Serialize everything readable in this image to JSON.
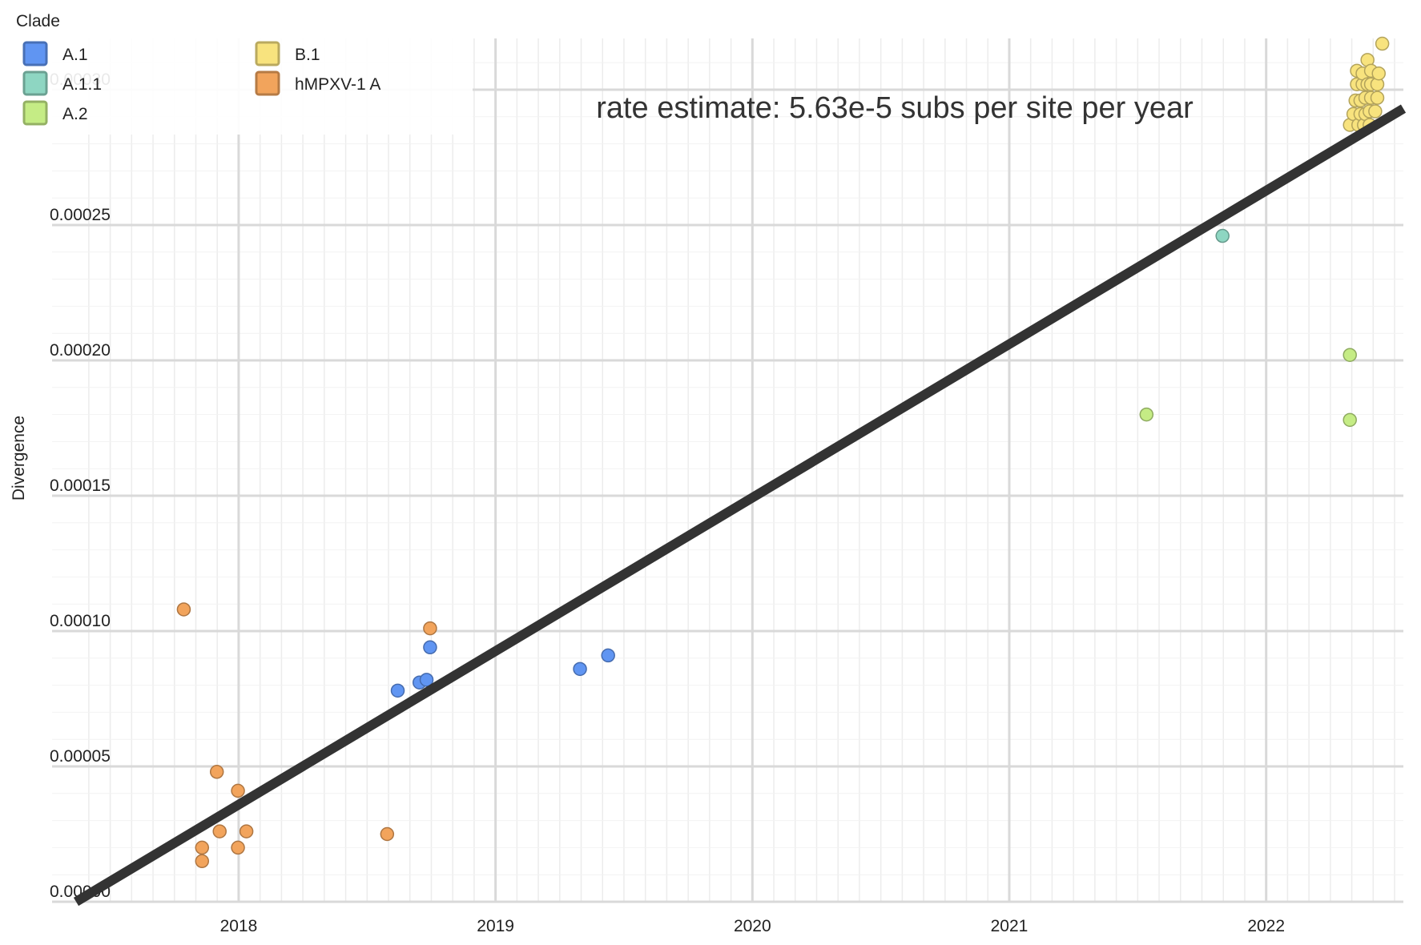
{
  "chart_data": {
    "type": "scatter",
    "title": "",
    "annotation": "rate estimate: 5.63e-5 subs per site per year",
    "xlabel": "",
    "ylabel": "Divergence",
    "xlim": [
      "2017-05-15",
      "2022-07-15"
    ],
    "ylim": [
      0,
      0.00032
    ],
    "x_ticks": [
      "2018",
      "2019",
      "2020",
      "2021",
      "2022"
    ],
    "y_ticks": [
      "0.00000",
      "0.00005",
      "0.00010",
      "0.00015",
      "0.00020",
      "0.00025",
      "0.00030"
    ],
    "grid": true,
    "legend": {
      "title": "Clade",
      "position": "top-left",
      "entries": [
        {
          "name": "A.1",
          "color": "#6095f2"
        },
        {
          "name": "A.1.1",
          "color": "#8ed6c2"
        },
        {
          "name": "A.2",
          "color": "#c5ec85"
        },
        {
          "name": "B.1",
          "color": "#f8e37e"
        },
        {
          "name": "hMPXV-1 A",
          "color": "#f2a45c"
        }
      ]
    },
    "regression_line": {
      "color": "#333333",
      "points": [
        {
          "x": "2017-05-15",
          "y": 0.0
        },
        {
          "x": "2022-07-15",
          "y": 0.000293
        }
      ]
    },
    "series": [
      {
        "name": "hMPXV-1 A",
        "color": "#f2a45c",
        "points": [
          {
            "x": "2017-10-15",
            "y": 0.000108
          },
          {
            "x": "2017-11-10",
            "y": 2e-05
          },
          {
            "x": "2017-11-10",
            "y": 1.5e-05
          },
          {
            "x": "2017-12-01",
            "y": 4.8e-05
          },
          {
            "x": "2017-12-05",
            "y": 2.6e-05
          },
          {
            "x": "2017-12-31",
            "y": 4.1e-05
          },
          {
            "x": "2017-12-31",
            "y": 2e-05
          },
          {
            "x": "2018-01-12",
            "y": 2.6e-05
          },
          {
            "x": "2018-07-31",
            "y": 2.5e-05
          },
          {
            "x": "2018-09-30",
            "y": 0.000101
          }
        ]
      },
      {
        "name": "A.1",
        "color": "#6095f2",
        "points": [
          {
            "x": "2018-08-15",
            "y": 7.8e-05
          },
          {
            "x": "2018-09-15",
            "y": 8.1e-05
          },
          {
            "x": "2018-09-25",
            "y": 8.2e-05
          },
          {
            "x": "2018-09-30",
            "y": 9.4e-05
          },
          {
            "x": "2019-05-01",
            "y": 8.6e-05
          },
          {
            "x": "2019-06-10",
            "y": 9.1e-05
          }
        ]
      },
      {
        "name": "A.1.1",
        "color": "#8ed6c2",
        "points": [
          {
            "x": "2021-10-31",
            "y": 0.000246
          }
        ]
      },
      {
        "name": "A.2",
        "color": "#c5ec85",
        "points": [
          {
            "x": "2021-07-15",
            "y": 0.00018
          },
          {
            "x": "2022-04-30",
            "y": 0.000202
          },
          {
            "x": "2022-04-30",
            "y": 0.000178
          }
        ]
      },
      {
        "name": "B.1",
        "color": "#f8e37e",
        "points": [
          {
            "x": "2022-04-30",
            "y": 0.000287
          },
          {
            "x": "2022-05-05",
            "y": 0.000291
          },
          {
            "x": "2022-05-08",
            "y": 0.000296
          },
          {
            "x": "2022-05-10",
            "y": 0.000302
          },
          {
            "x": "2022-05-10",
            "y": 0.000307
          },
          {
            "x": "2022-05-12",
            "y": 0.000287
          },
          {
            "x": "2022-05-15",
            "y": 0.000291
          },
          {
            "x": "2022-05-15",
            "y": 0.000296
          },
          {
            "x": "2022-05-18",
            "y": 0.000302
          },
          {
            "x": "2022-05-18",
            "y": 0.000306
          },
          {
            "x": "2022-05-20",
            "y": 0.000287
          },
          {
            "x": "2022-05-22",
            "y": 0.000291
          },
          {
            "x": "2022-05-22",
            "y": 0.000297
          },
          {
            "x": "2022-05-25",
            "y": 0.000302
          },
          {
            "x": "2022-05-25",
            "y": 0.000311
          },
          {
            "x": "2022-05-28",
            "y": 0.000287
          },
          {
            "x": "2022-05-28",
            "y": 0.000292
          },
          {
            "x": "2022-05-30",
            "y": 0.000297
          },
          {
            "x": "2022-05-30",
            "y": 0.000302
          },
          {
            "x": "2022-05-30",
            "y": 0.000307
          },
          {
            "x": "2022-06-05",
            "y": 0.000292
          },
          {
            "x": "2022-06-08",
            "y": 0.000297
          },
          {
            "x": "2022-06-08",
            "y": 0.000302
          },
          {
            "x": "2022-06-10",
            "y": 0.000306
          },
          {
            "x": "2022-06-15",
            "y": 0.000317
          }
        ]
      }
    ]
  }
}
